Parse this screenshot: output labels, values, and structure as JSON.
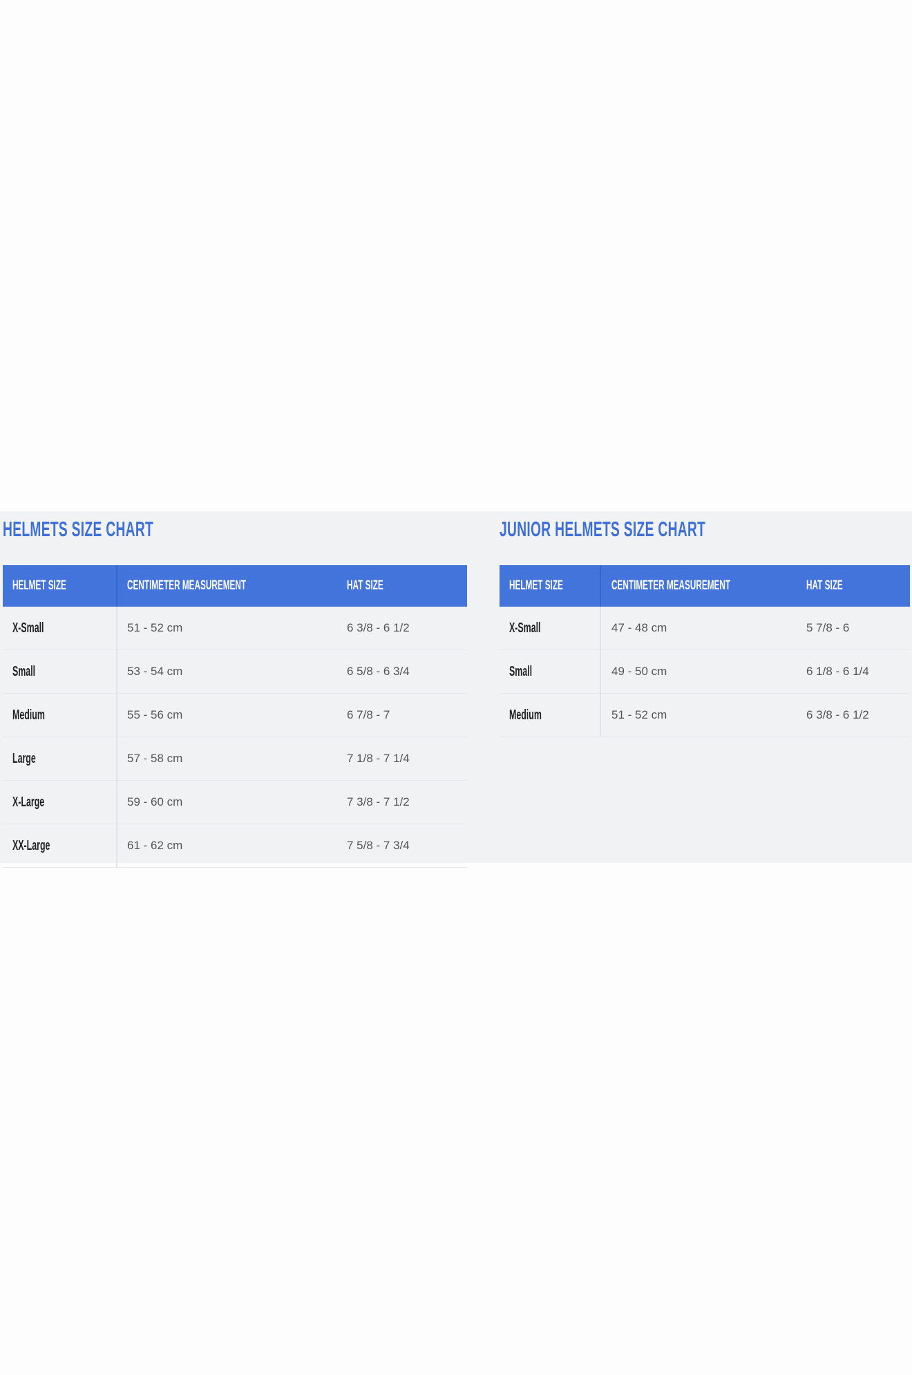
{
  "colors": {
    "accent": "#4274dc",
    "title": "#3f6fd8",
    "background": "#f1f2f4"
  },
  "adult": {
    "title": "HELMETS SIZE CHART",
    "headers": [
      "HELMET SIZE",
      "CENTIMETER MEASUREMENT",
      "HAT SIZE"
    ],
    "rows": [
      [
        "X-Small",
        "51 - 52 cm",
        "6 3/8 - 6 1/2"
      ],
      [
        "Small",
        "53 - 54 cm",
        "6 5/8 - 6 3/4"
      ],
      [
        "Medium",
        "55 - 56 cm",
        "6 7/8 - 7"
      ],
      [
        "Large",
        "57 - 58 cm",
        "7 1/8 - 7 1/4"
      ],
      [
        "X-Large",
        "59 - 60 cm",
        "7 3/8 - 7 1/2"
      ],
      [
        "XX-Large",
        "61 - 62 cm",
        "7 5/8 - 7 3/4"
      ]
    ]
  },
  "junior": {
    "title": "JUNIOR HELMETS SIZE CHART",
    "headers": [
      "HELMET SIZE",
      "CENTIMETER MEASUREMENT",
      "HAT SIZE"
    ],
    "rows": [
      [
        "X-Small",
        "47 - 48 cm",
        "5 7/8 - 6"
      ],
      [
        "Small",
        "49 - 50 cm",
        "6 1/8 - 6 1/4"
      ],
      [
        "Medium",
        "51 - 52 cm",
        "6 3/8 - 6 1/2"
      ]
    ]
  }
}
